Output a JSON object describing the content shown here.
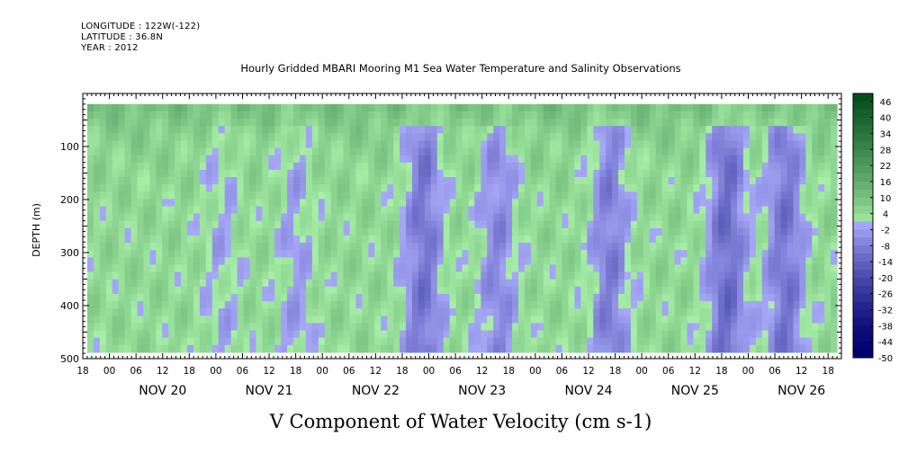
{
  "header": {
    "longitude": "LONGITUDE : 122W(-122)",
    "latitude": "LATITUDE : 36.8N",
    "year": "YEAR : 2012",
    "title": "Hourly Gridded MBARI Mooring M1 Sea Water Temperature and Salinity Observations"
  },
  "chart_data": {
    "type": "heatmap",
    "title": "Hourly Gridded MBARI Mooring M1 Sea Water Temperature and Salinity Observations",
    "xlabel": "V Component of Water Velocity (cm s-1)",
    "ylabel": "DEPTH (m)",
    "ylim": [
      500,
      0
    ],
    "y_ticks": [
      100,
      200,
      300,
      400,
      500
    ],
    "x_start": "NOV 19 18:00",
    "x_end": "NOV 26 21:00",
    "x_hour_ticks": [
      "00",
      "06",
      "12",
      "18"
    ],
    "x_days": [
      "NOV 20",
      "NOV 21",
      "NOV 22",
      "NOV 23",
      "NOV 24",
      "NOV 25",
      "NOV 26"
    ],
    "data_time_range": [
      "NOV 19 19:00",
      "NOV 26 20:00"
    ],
    "data_depth_range": [
      20,
      488
    ],
    "colorbar": {
      "labels": [
        46,
        40,
        34,
        28,
        22,
        16,
        10,
        4,
        -2,
        -8,
        -14,
        -20,
        -26,
        -32,
        -38,
        -44,
        -50
      ],
      "min": -50,
      "max": 49,
      "step": 3,
      "low_color": "#000070",
      "mid_negative_color": "#a8a8f8",
      "mid_positive_color": "#a8f0a8",
      "high_color": "#004a1a"
    },
    "field_description_by_day": [
      {
        "day": "NOV 19-20",
        "upper": "green",
        "lower": "mixed"
      },
      {
        "day": "NOV 22",
        "upper": "green",
        "lower": "blue"
      },
      {
        "day": "NOV 23",
        "upper": "green",
        "lower": "blue"
      },
      {
        "day": "NOV 25",
        "upper": "blue",
        "lower": "blue"
      },
      {
        "day": "NOV 26",
        "upper": "blue",
        "lower": "blue"
      }
    ]
  }
}
